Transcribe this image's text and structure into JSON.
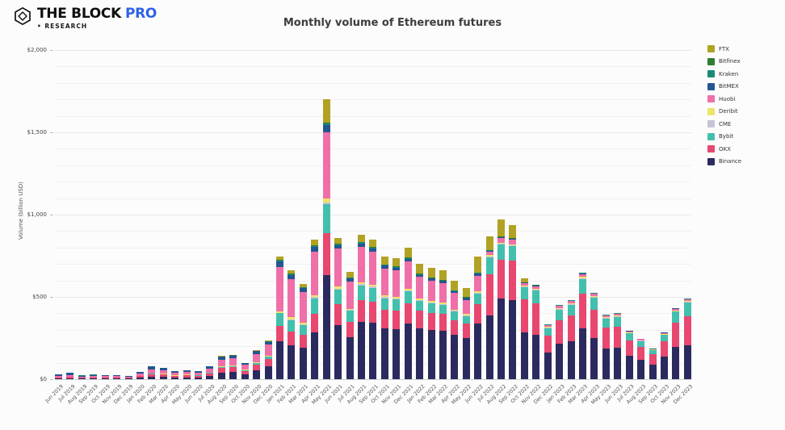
{
  "header": {
    "logo": {
      "brand": "THE BLOCK",
      "pro": "PRO",
      "pro_color": "#2f62e9",
      "sub": "• RESEARCH"
    },
    "title": "Monthly volume of Ethereum futures"
  },
  "chart_data": {
    "type": "bar",
    "stacked": true,
    "title": "Monthly volume of Ethereum futures",
    "xlabel": "",
    "ylabel": "Volume (billion USD)",
    "ylim": [
      0,
      2000
    ],
    "gridline_interval": 100,
    "grid": true,
    "legend_position": "right",
    "y_ticks": [
      {
        "label": "$0",
        "value": 0
      },
      {
        "label": "$500",
        "value": 500
      },
      {
        "label": "$1,000",
        "value": 1000
      },
      {
        "label": "$1,500",
        "value": 1500
      },
      {
        "label": "$2,000",
        "value": 2000
      }
    ],
    "categories": [
      "Jun 2019",
      "Jul 2019",
      "Aug 2019",
      "Sep 2019",
      "Oct 2019",
      "Nov 2019",
      "Dec 2019",
      "Jan 2020",
      "Feb 2020",
      "Mar 2020",
      "Apr 2020",
      "May 2020",
      "Jun 2020",
      "Jul 2020",
      "Aug 2020",
      "Sep 2020",
      "Oct 2020",
      "Nov 2020",
      "Dec 2020",
      "Jan 2021",
      "Feb 2021",
      "Mar 2021",
      "Apr 2021",
      "May 2021",
      "Jun 2021",
      "Jul 2021",
      "Aug 2021",
      "Sep 2021",
      "Oct 2021",
      "Nov 2021",
      "Dec 2021",
      "Jan 2022",
      "Feb 2022",
      "Mar 2022",
      "Apr 2022",
      "May 2022",
      "Jun 2022",
      "Jul 2022",
      "Aug 2022",
      "Sep 2022",
      "Oct 2022",
      "Nov 2022",
      "Dec 2022",
      "Jan 2023",
      "Feb 2023",
      "Mar 2023",
      "Apr 2023",
      "May 2023",
      "Jun 2023",
      "Jul 2023",
      "Aug 2023",
      "Sep 2023",
      "Oct 2023",
      "Nov 2023",
      "Dec 2023"
    ],
    "series": [
      {
        "name": "Binance",
        "color": "#2b2a5f",
        "values": [
          3,
          4,
          3,
          4,
          4,
          4,
          3.5,
          8,
          15,
          14,
          10,
          12,
          11,
          20,
          40,
          44,
          30,
          55,
          80,
          230,
          205,
          190,
          285,
          630,
          330,
          255,
          350,
          345,
          310,
          305,
          340,
          310,
          300,
          295,
          268,
          250,
          340,
          385,
          490,
          480,
          284,
          270,
          160,
          215,
          230,
          310,
          250,
          185,
          190,
          140,
          118,
          90,
          136,
          196,
          206
        ]
      },
      {
        "name": "OKX",
        "color": "#e8476f",
        "values": [
          7,
          9,
          5,
          6,
          6,
          5,
          4.5,
          10,
          17,
          15,
          10,
          12,
          11,
          16,
          27,
          28,
          19,
          33,
          44,
          95,
          85,
          78,
          112,
          255,
          125,
          95,
          130,
          125,
          110,
          110,
          120,
          105,
          102,
          100,
          92,
          86,
          118,
          250,
          235,
          240,
          200,
          190,
          105,
          145,
          155,
          210,
          170,
          128,
          131,
          96,
          80,
          60,
          93,
          145,
          176
        ]
      },
      {
        "name": "Bybit",
        "color": "#43bfae",
        "values": [
          0,
          0,
          0,
          0,
          0.5,
          0.5,
          0.5,
          1,
          2,
          2,
          1.5,
          2,
          2,
          3,
          6,
          7,
          5,
          9,
          13,
          75,
          70,
          60,
          95,
          180,
          88,
          65,
          90,
          85,
          72,
          70,
          75,
          62,
          60,
          58,
          52,
          48,
          64,
          105,
          93,
          88,
          74,
          78,
          45,
          62,
          66,
          90,
          74,
          56,
          58,
          42,
          34,
          26,
          40,
          70,
          83
        ]
      },
      {
        "name": "CME",
        "color": "#c8c3d7",
        "values": [
          0,
          0,
          0,
          0,
          0,
          0,
          0,
          0,
          0,
          0,
          0,
          0,
          0,
          0,
          0,
          0,
          0,
          0,
          0,
          0,
          5,
          6,
          7,
          10,
          7,
          5,
          7,
          7,
          6,
          6,
          6,
          5,
          5,
          5,
          4,
          4,
          5,
          5,
          5,
          5,
          4,
          4,
          3,
          4,
          4,
          5,
          4,
          3,
          3,
          2,
          2,
          1.5,
          2,
          3,
          4
        ]
      },
      {
        "name": "Deribit",
        "color": "#ede469",
        "values": [
          1,
          1,
          1,
          1,
          1,
          1,
          1,
          1.5,
          2.5,
          2,
          1.5,
          1.5,
          1.5,
          2,
          4,
          4,
          3,
          5,
          6,
          12,
          12,
          10,
          13,
          25,
          12,
          9,
          12,
          12,
          10,
          10,
          10,
          9,
          9,
          8,
          8,
          7,
          8,
          8,
          8,
          8,
          6,
          6,
          5,
          6,
          6,
          8,
          7,
          5,
          5,
          4,
          3,
          2.5,
          4,
          5,
          6
        ]
      },
      {
        "name": "Huobi",
        "color": "#ef6fa8",
        "values": [
          8,
          10,
          6,
          8,
          8,
          7,
          6,
          14,
          24,
          22,
          15,
          17,
          15,
          24,
          42,
          44,
          30,
          52,
          66,
          270,
          230,
          185,
          265,
          400,
          230,
          165,
          215,
          200,
          165,
          160,
          165,
          130,
          122,
          118,
          100,
          88,
          95,
          22,
          25,
          25,
          15,
          16,
          10,
          12,
          13,
          16,
          13,
          10,
          10,
          7,
          6,
          4,
          7,
          9,
          11
        ]
      },
      {
        "name": "BitMEX",
        "color": "#23568f",
        "values": [
          10,
          13,
          7,
          8,
          7,
          6,
          4,
          10,
          17,
          14,
          9,
          10,
          9,
          13,
          18,
          16,
          10,
          17,
          19,
          35,
          28,
          25,
          28,
          45,
          22,
          18,
          22,
          20,
          18,
          17,
          17,
          14,
          13,
          12,
          11,
          10,
          12,
          5,
          5,
          5,
          4,
          5,
          3,
          3,
          3,
          4,
          3,
          2,
          2,
          1.5,
          1,
          1,
          1,
          1.5,
          2
        ]
      },
      {
        "name": "Kraken",
        "color": "#1a8a78",
        "values": [
          0.5,
          0.5,
          0.3,
          0.3,
          0.3,
          0.3,
          0.3,
          0.3,
          0.3,
          0.5,
          0.5,
          0.3,
          0.3,
          1,
          1.5,
          1.5,
          1,
          1.5,
          2,
          6,
          5,
          5,
          6,
          10,
          6,
          5,
          6,
          6,
          5,
          5,
          5,
          4,
          4,
          4,
          3,
          3,
          4,
          3,
          3,
          3,
          2,
          2,
          1,
          2,
          2,
          2,
          2,
          2,
          2,
          1,
          0.7,
          0.7,
          0.7,
          1,
          1.5
        ]
      },
      {
        "name": "Bitfinex",
        "color": "#2e7d32",
        "values": [
          0.5,
          0.5,
          0.2,
          0.2,
          0.2,
          0.2,
          0.2,
          0.2,
          0.2,
          0.5,
          0.5,
          0.2,
          0.2,
          0.5,
          0.5,
          0.5,
          0.5,
          0.5,
          1,
          3,
          3,
          2,
          3,
          5,
          3,
          2,
          3,
          3,
          2,
          2,
          2,
          2,
          2,
          2,
          2,
          2,
          2,
          2,
          2,
          2,
          1,
          2,
          1,
          1,
          1,
          2,
          1,
          1,
          1,
          0.5,
          0.3,
          0.3,
          0.3,
          0.5,
          0.5
        ]
      },
      {
        "name": "FTX",
        "color": "#b2a224",
        "values": [
          0,
          0,
          0,
          0,
          0,
          0,
          0,
          0,
          0,
          0,
          0,
          0,
          0,
          0.5,
          1,
          2,
          1.5,
          2,
          4,
          19,
          17,
          19,
          36,
          140,
          35,
          33,
          45,
          45,
          47,
          50,
          60,
          59,
          59,
          60,
          58,
          56,
          97,
          82,
          104,
          80,
          22,
          0,
          0,
          0,
          0,
          0,
          0,
          0,
          0,
          0,
          0,
          0,
          0,
          0,
          0
        ]
      }
    ],
    "legend_top_to_bottom": [
      "FTX",
      "Bitfinex",
      "Kraken",
      "BitMEX",
      "Huobi",
      "Deribit",
      "CME",
      "Bybit",
      "OKX",
      "Binance"
    ]
  }
}
